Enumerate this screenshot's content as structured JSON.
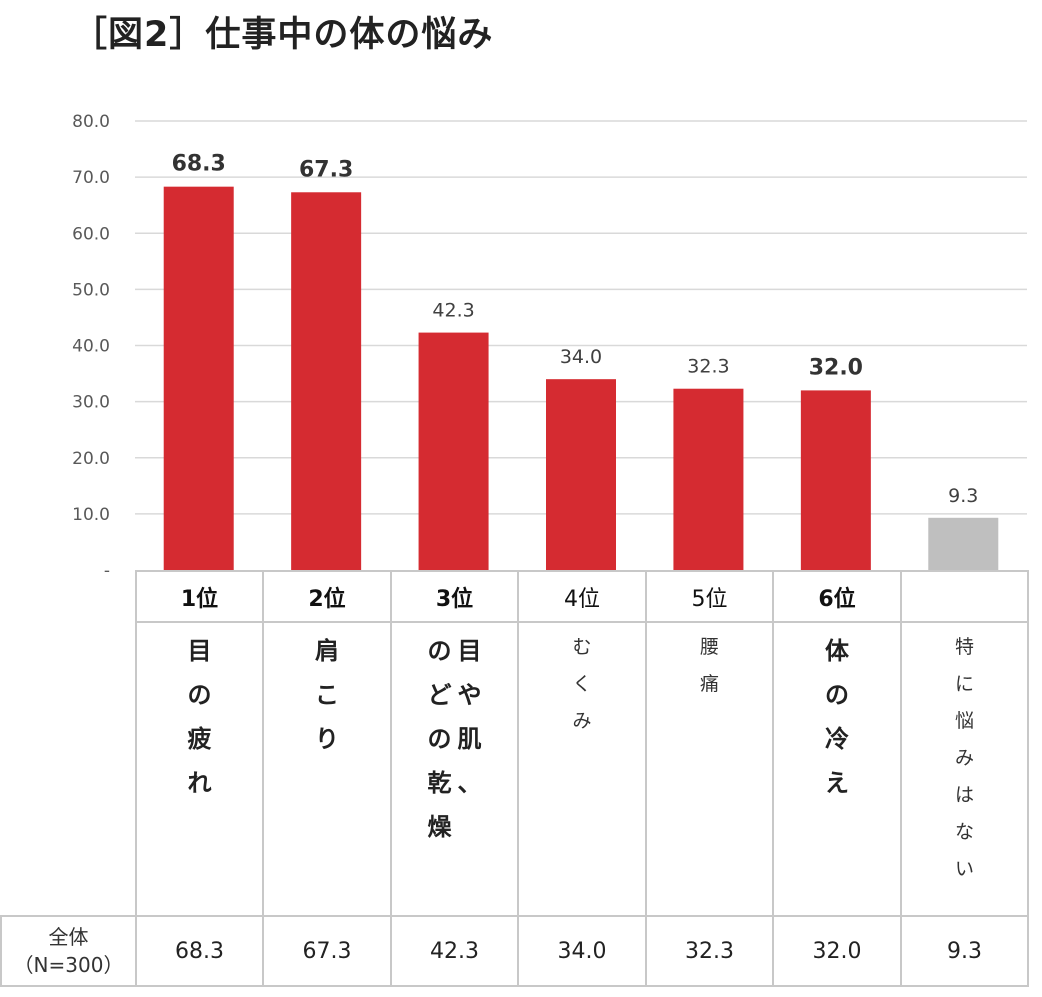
{
  "title": "［図2］仕事中の体の悩み",
  "chart_data": {
    "type": "bar",
    "ylim": [
      0,
      80
    ],
    "yticks": [
      "-",
      "10.0",
      "20.0",
      "30.0",
      "40.0",
      "50.0",
      "60.0",
      "70.0",
      "80.0"
    ],
    "grid": true,
    "categories": [
      "目の疲れ",
      "肩こり",
      "目や肌、のどの乾燥",
      "むくみ",
      "腰痛",
      "体の冷え",
      "特に悩みはない"
    ],
    "values": [
      68.3,
      67.3,
      42.3,
      34.0,
      32.3,
      32.0,
      9.3
    ],
    "value_labels": [
      "68.3",
      "67.3",
      "42.3",
      "34.0",
      "32.3",
      "32.0",
      "9.3"
    ],
    "bold_labels": [
      true,
      true,
      false,
      false,
      false,
      true,
      false
    ],
    "colors": [
      "#d52b31",
      "#d52b31",
      "#d52b31",
      "#d52b31",
      "#d52b31",
      "#d52b31",
      "#bfbfbf"
    ]
  },
  "table": {
    "ranks": [
      "1位",
      "2位",
      "3位",
      "4位",
      "5位",
      "6位",
      ""
    ],
    "rank_bold": [
      true,
      true,
      true,
      false,
      false,
      true,
      false
    ],
    "labels": [
      {
        "cols": [
          "目の疲れ"
        ],
        "bold": true
      },
      {
        "cols": [
          "肩こり"
        ],
        "bold": true
      },
      {
        "cols": [
          "目や肌、",
          "のどの乾燥"
        ],
        "bold": true
      },
      {
        "cols": [
          "むくみ"
        ],
        "bold": false
      },
      {
        "cols": [
          "腰痛"
        ],
        "bold": false
      },
      {
        "cols": [
          "体の冷え"
        ],
        "bold": true
      },
      {
        "cols": [
          "特に悩みはない"
        ],
        "bold": false
      }
    ],
    "row_header_line1": "全体",
    "row_header_line2": "（N=300）",
    "values": [
      "68.3",
      "67.3",
      "42.3",
      "34.0",
      "32.3",
      "32.0",
      "9.3"
    ]
  }
}
